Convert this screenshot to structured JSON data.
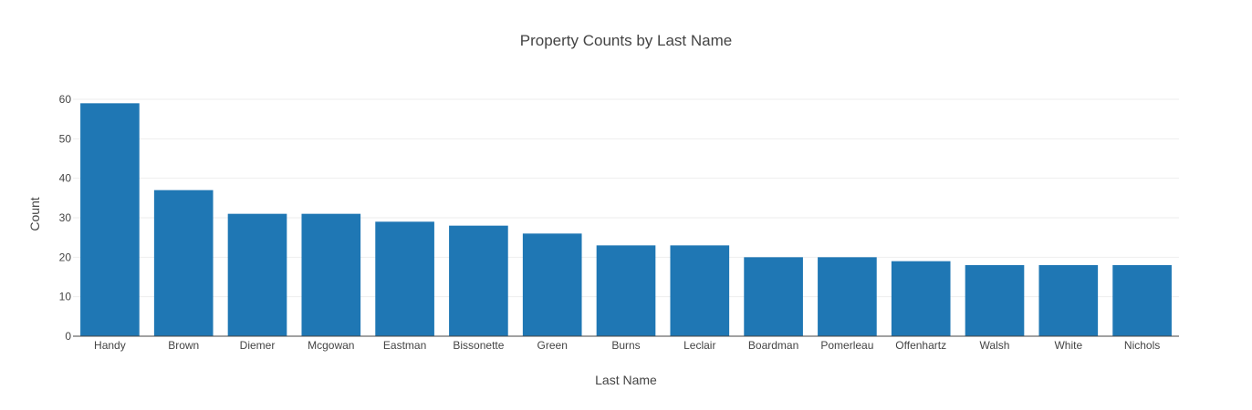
{
  "chart_data": {
    "type": "bar",
    "title": "Property Counts by Last Name",
    "xlabel": "Last Name",
    "ylabel": "Count",
    "categories": [
      "Handy",
      "Brown",
      "Diemer",
      "Mcgowan",
      "Eastman",
      "Bissonette",
      "Green",
      "Burns",
      "Leclair",
      "Boardman",
      "Pomerleau",
      "Offenhartz",
      "Walsh",
      "White",
      "Nichols"
    ],
    "values": [
      59,
      37,
      31,
      31,
      29,
      28,
      26,
      23,
      23,
      20,
      20,
      19,
      18,
      18,
      18
    ],
    "ylim": [
      0,
      60
    ],
    "yticks": [
      0,
      10,
      20,
      30,
      40,
      50,
      60
    ],
    "grid": true,
    "bar_color": "#1f77b4"
  }
}
